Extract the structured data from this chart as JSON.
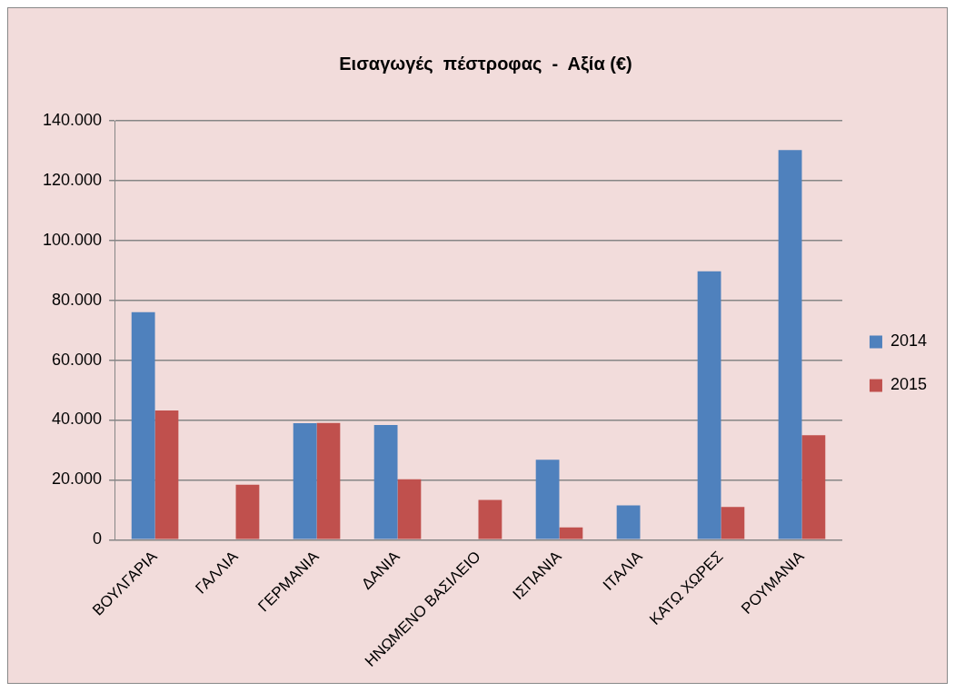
{
  "chart_data": {
    "type": "bar",
    "title": "Εισαγωγές  πέστροφας  -  Αξία (€)",
    "categories": [
      "ΒΟΥΛΓΑΡΙΑ",
      "ΓΑΛΛΙΑ",
      "ΓΕΡΜΑΝΙΑ",
      "ΔΑΝΙΑ",
      "ΗΝΩΜΕΝΟ ΒΑΣΙΛΕΙΟ",
      "ΙΣΠΑΝΙΑ",
      "ΙΤΑΛΙΑ",
      "ΚΑΤΩ ΧΩΡΕΣ",
      "ΡΟΥΜΑΝΙΑ"
    ],
    "series": [
      {
        "name": "2014",
        "color": "#4f81bd",
        "values": [
          76000,
          null,
          38900,
          38300,
          null,
          26700,
          11500,
          89700,
          130200
        ]
      },
      {
        "name": "2015",
        "color": "#c0504d",
        "values": [
          43200,
          18400,
          39000,
          20200,
          13300,
          4100,
          null,
          10900,
          34900
        ]
      }
    ],
    "ylim": [
      0,
      140000
    ],
    "yticks": [
      {
        "value": 0,
        "label": "0"
      },
      {
        "value": 20000,
        "label": "20.000"
      },
      {
        "value": 40000,
        "label": "40.000"
      },
      {
        "value": 60000,
        "label": "60.000"
      },
      {
        "value": 80000,
        "label": "80.000"
      },
      {
        "value": 100000,
        "label": "100.000"
      },
      {
        "value": 120000,
        "label": "120.000"
      },
      {
        "value": 140000,
        "label": "140.000"
      }
    ],
    "grid": "y",
    "legend": "right"
  }
}
